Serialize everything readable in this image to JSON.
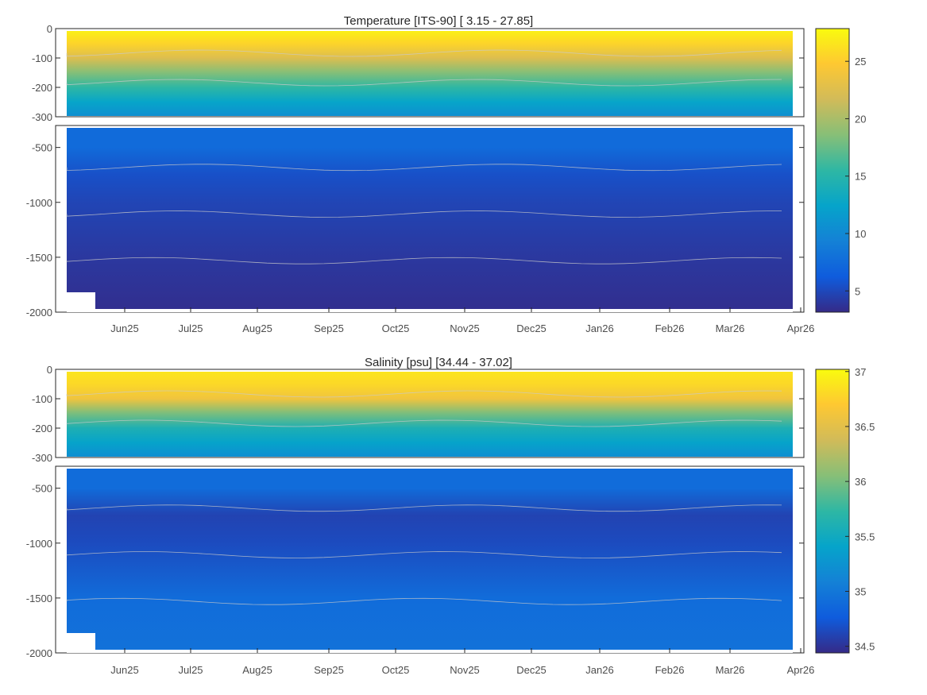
{
  "chart_data": [
    {
      "type": "heatmap",
      "title": "Temperature [ITS-90]   [ 3.15 - 27.85]",
      "variable": "temperature",
      "value_range": [
        3.15,
        27.85
      ],
      "x_tick_labels": [
        "Jun25",
        "Jul25",
        "Aug25",
        "Sep25",
        "Oct25",
        "Nov25",
        "Dec25",
        "Jan26",
        "Feb26",
        "Mar26",
        "Apr26"
      ],
      "upper_panel": {
        "ylim": [
          -300,
          0
        ],
        "y_ticks": [
          0,
          -100,
          -200,
          -300
        ]
      },
      "lower_panel": {
        "ylim": [
          -2000,
          -300
        ],
        "y_ticks": [
          -500,
          -1000,
          -1500,
          -2000
        ]
      },
      "colorbar": {
        "range": [
          3.15,
          27.85
        ],
        "ticks": [
          5,
          10,
          15,
          20,
          25
        ],
        "colormap": "parula"
      },
      "profile_depth_value": [
        {
          "depth": 0,
          "value": 27.5
        },
        {
          "depth": -50,
          "value": 25.5
        },
        {
          "depth": -100,
          "value": 22.5
        },
        {
          "depth": -150,
          "value": 18.5
        },
        {
          "depth": -200,
          "value": 15.5
        },
        {
          "depth": -250,
          "value": 12.5
        },
        {
          "depth": -300,
          "value": 10.5
        },
        {
          "depth": -500,
          "value": 7.5
        },
        {
          "depth": -750,
          "value": 5.5
        },
        {
          "depth": -1000,
          "value": 4.8
        },
        {
          "depth": -1500,
          "value": 4.0
        },
        {
          "depth": -2000,
          "value": 3.4
        }
      ]
    },
    {
      "type": "heatmap",
      "title": "Salinity [psu]   [34.44 - 37.02]",
      "variable": "salinity",
      "value_range": [
        34.44,
        37.02
      ],
      "x_tick_labels": [
        "Jun25",
        "Jul25",
        "Aug25",
        "Sep25",
        "Oct25",
        "Nov25",
        "Dec25",
        "Jan26",
        "Feb26",
        "Mar26",
        "Apr26"
      ],
      "upper_panel": {
        "ylim": [
          -300,
          0
        ],
        "y_ticks": [
          0,
          -100,
          -200,
          -300
        ]
      },
      "lower_panel": {
        "ylim": [
          -2000,
          -300
        ],
        "y_ticks": [
          -500,
          -1000,
          -1500,
          -2000
        ]
      },
      "colorbar": {
        "range": [
          34.44,
          37.02
        ],
        "ticks": [
          34.5,
          35,
          35.5,
          36,
          36.5,
          37
        ],
        "colormap": "parula"
      },
      "profile_depth_value": [
        {
          "depth": 0,
          "value": 36.9
        },
        {
          "depth": -50,
          "value": 36.8
        },
        {
          "depth": -100,
          "value": 36.6
        },
        {
          "depth": -150,
          "value": 36.0
        },
        {
          "depth": -200,
          "value": 35.6
        },
        {
          "depth": -250,
          "value": 35.4
        },
        {
          "depth": -300,
          "value": 35.2
        },
        {
          "depth": -500,
          "value": 34.9
        },
        {
          "depth": -750,
          "value": 34.6
        },
        {
          "depth": -1000,
          "value": 34.65
        },
        {
          "depth": -1500,
          "value": 34.9
        },
        {
          "depth": -2000,
          "value": 34.95
        }
      ]
    }
  ]
}
